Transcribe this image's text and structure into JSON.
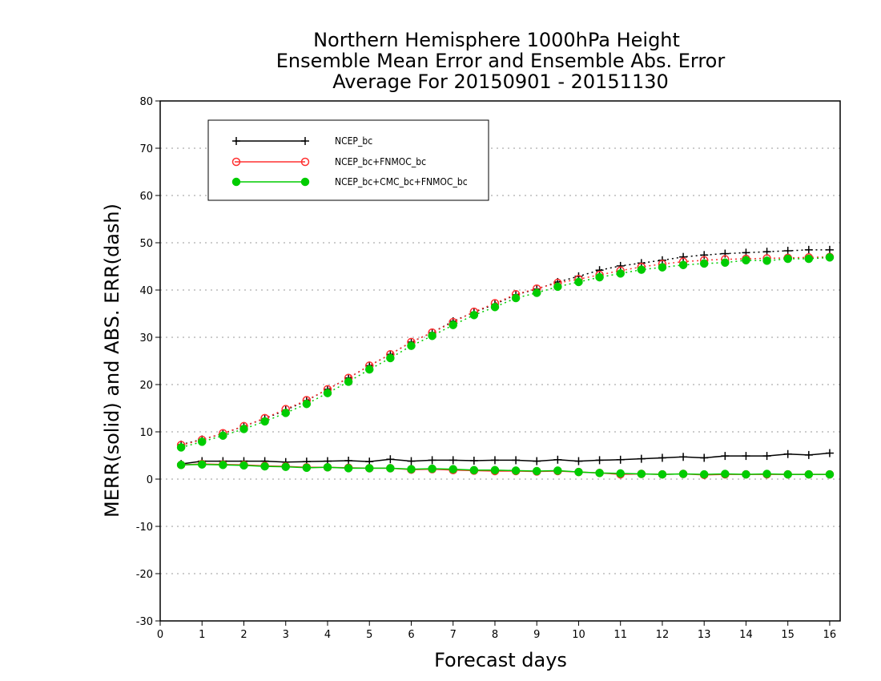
{
  "chart_data": {
    "type": "line",
    "title_lines": [
      "Northern Hemisphere 1000hPa Height",
      "Ensemble Mean Error and Ensemble Abs. Error",
      "Average For 20150901 - 20151130"
    ],
    "xlabel": "Forecast days",
    "ylabel": "MERR(solid) and ABS. ERR(dash)",
    "xlim": [
      0,
      16.25
    ],
    "ylim": [
      -30,
      80
    ],
    "xticks": [
      0,
      1,
      2,
      3,
      4,
      5,
      6,
      7,
      8,
      9,
      10,
      11,
      12,
      13,
      14,
      15,
      16
    ],
    "yticks": [
      -30,
      -20,
      -10,
      0,
      10,
      20,
      30,
      40,
      50,
      60,
      70,
      80
    ],
    "grid": "horizontal dotted",
    "legend_position": "top-left",
    "x": [
      0.5,
      1,
      1.5,
      2,
      2.5,
      3,
      3.5,
      4,
      4.5,
      5,
      5.5,
      6,
      6.5,
      7,
      7.5,
      8,
      8.5,
      9,
      9.5,
      10,
      10.5,
      11,
      11.5,
      12,
      12.5,
      13,
      13.5,
      14,
      14.5,
      15,
      15.5,
      16
    ],
    "series": [
      {
        "name": "NCEP_bc",
        "color": "#000000",
        "marker": "plus",
        "merr": [
          3.2,
          3.8,
          3.8,
          3.8,
          3.8,
          3.6,
          3.7,
          3.8,
          3.9,
          3.7,
          4.2,
          3.8,
          4.0,
          4.0,
          3.9,
          4.0,
          4.0,
          3.8,
          4.1,
          3.8,
          4.0,
          4.1,
          4.3,
          4.5,
          4.7,
          4.5,
          4.9,
          4.9,
          4.9,
          5.3,
          5.1,
          5.5
        ],
        "abs_err": [
          7.3,
          8.4,
          9.6,
          11.2,
          12.8,
          14.6,
          16.6,
          19.0,
          21.4,
          24.0,
          26.4,
          29.0,
          31.0,
          33.4,
          35.3,
          37.0,
          39.0,
          40.2,
          41.7,
          42.9,
          44.2,
          45.1,
          45.7,
          46.3,
          47.0,
          47.4,
          47.7,
          47.9,
          48.1,
          48.3,
          48.5,
          48.5
        ]
      },
      {
        "name": "NCEP_bc+FNMOC_bc",
        "color": "#ff3030",
        "marker": "open-circle",
        "merr": [
          3.0,
          3.2,
          3.1,
          3.0,
          2.8,
          2.7,
          2.5,
          2.5,
          2.4,
          2.3,
          2.3,
          2.0,
          2.1,
          1.9,
          1.8,
          1.7,
          1.7,
          1.6,
          1.7,
          1.5,
          1.3,
          1.0,
          1.1,
          1.0,
          1.1,
          0.9,
          1.0,
          1.0,
          1.0,
          1.0,
          1.0,
          1.0
        ],
        "abs_err": [
          7.2,
          8.3,
          9.7,
          11.2,
          12.9,
          14.8,
          16.7,
          19.0,
          21.4,
          24.0,
          26.4,
          29.0,
          31.0,
          33.2,
          35.4,
          37.2,
          39.1,
          40.3,
          41.5,
          42.3,
          43.2,
          44.1,
          44.9,
          45.5,
          46.0,
          46.3,
          46.5,
          46.6,
          46.7,
          46.8,
          46.9,
          47.0
        ]
      },
      {
        "name": "NCEP_bc+CMC_bc+FNMOC_bc",
        "color": "#00cc00",
        "marker": "filled-circle",
        "merr": [
          3.0,
          3.1,
          3.0,
          2.9,
          2.7,
          2.6,
          2.4,
          2.5,
          2.3,
          2.3,
          2.3,
          2.1,
          2.2,
          2.1,
          1.9,
          1.9,
          1.8,
          1.7,
          1.8,
          1.5,
          1.3,
          1.2,
          1.1,
          1.0,
          1.1,
          1.0,
          1.1,
          1.0,
          1.1,
          1.0,
          1.0,
          1.0
        ],
        "abs_err": [
          6.7,
          7.9,
          9.2,
          10.6,
          12.2,
          14.0,
          15.9,
          18.2,
          20.6,
          23.2,
          25.6,
          28.2,
          30.3,
          32.6,
          34.7,
          36.4,
          38.3,
          39.4,
          40.7,
          41.7,
          42.7,
          43.5,
          44.3,
          44.8,
          45.3,
          45.6,
          45.8,
          46.3,
          46.2,
          46.6,
          46.6,
          46.9
        ]
      }
    ]
  }
}
